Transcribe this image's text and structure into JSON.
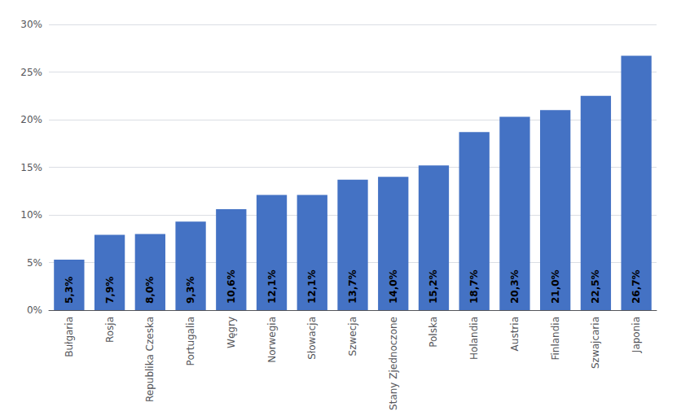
{
  "chart_data": {
    "type": "bar",
    "categories": [
      "Bułgaria",
      "Rosja",
      "Republika Czeska",
      "Portugalia",
      "Węgry",
      "Norwegia",
      "Słowacja",
      "Szwecja",
      "Stany Zjednoczone",
      "Polska",
      "Holandia",
      "Austria",
      "Finlandia",
      "Szwajcaria",
      "Japonia"
    ],
    "values": [
      5.3,
      7.9,
      8.0,
      9.3,
      10.6,
      12.1,
      12.1,
      13.7,
      14.0,
      15.2,
      18.7,
      20.3,
      21.0,
      22.5,
      26.7
    ],
    "value_labels": [
      "5,3%",
      "7,9%",
      "8,0%",
      "9,3%",
      "10,6%",
      "12,1%",
      "12,1%",
      "13,7%",
      "14,0%",
      "15,2%",
      "18,7%",
      "20,3%",
      "21,0%",
      "22,5%",
      "26,7%"
    ],
    "data_labels": true,
    "color": "#4472C4",
    "ylim": [
      0,
      30
    ],
    "yticks": [
      {
        "value": 0,
        "label": "0%"
      },
      {
        "value": 5,
        "label": "5%"
      },
      {
        "value": 10,
        "label": "10%"
      },
      {
        "value": 15,
        "label": "15%"
      },
      {
        "value": 20,
        "label": "20%"
      },
      {
        "value": 25,
        "label": "25%"
      },
      {
        "value": 30,
        "label": "30%"
      }
    ],
    "grid": true
  }
}
